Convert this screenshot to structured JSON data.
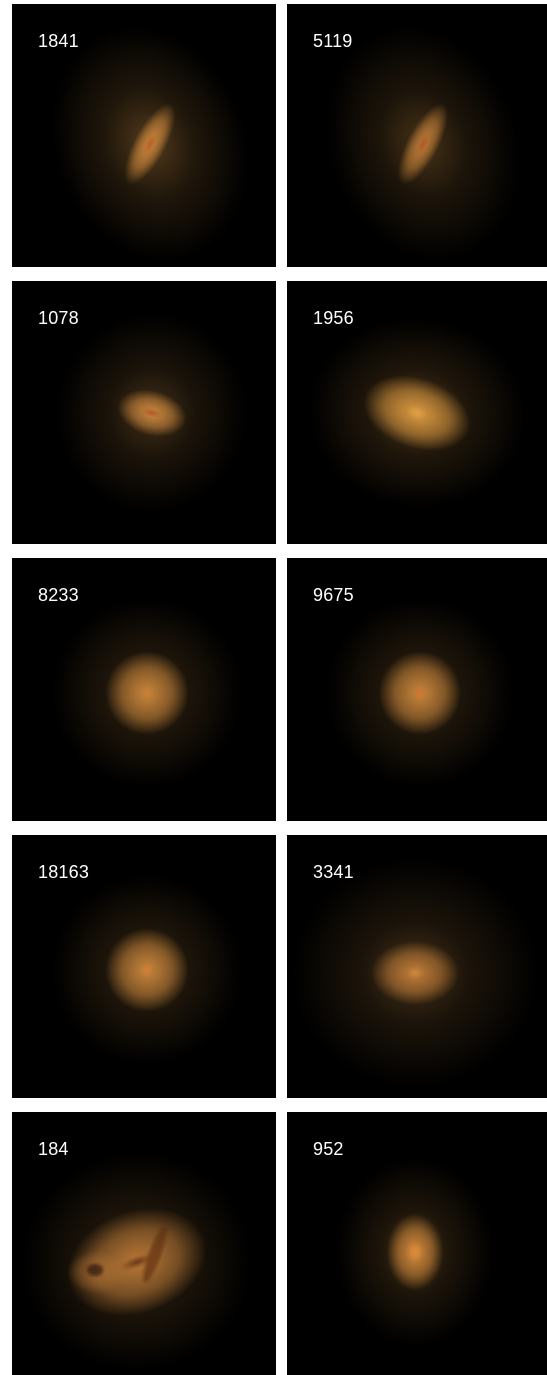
{
  "panels": [
    {
      "label": "1841",
      "shape": "elongated-disk",
      "colors": {
        "halo": "#6e4e25",
        "core": "#d08a3e",
        "nucleus": "#b0401a"
      }
    },
    {
      "label": "5119",
      "shape": "elongated-disk",
      "colors": {
        "halo": "#5f4420",
        "core": "#c3803a",
        "nucleus": "#a83c18"
      }
    },
    {
      "label": "1078",
      "shape": "compact-disturbed",
      "colors": {
        "halo": "#5a4020",
        "core": "#cf8a3f",
        "nucleus": "#9c3a18"
      }
    },
    {
      "label": "1956",
      "shape": "ellipsoidal",
      "colors": {
        "halo": "#6a4b24",
        "core": "#d9983f",
        "nucleus": "#e0a04a"
      }
    },
    {
      "label": "8233",
      "shape": "round",
      "colors": {
        "halo": "#5f4420",
        "core": "#c7843b",
        "nucleus": "#d07a30"
      }
    },
    {
      "label": "9675",
      "shape": "round",
      "colors": {
        "halo": "#5f4420",
        "core": "#c7843b",
        "nucleus": "#d86a28"
      }
    },
    {
      "label": "18163",
      "shape": "round",
      "colors": {
        "halo": "#5f4420",
        "core": "#c7843b",
        "nucleus": "#e07a30"
      }
    },
    {
      "label": "3341",
      "shape": "diffuse",
      "colors": {
        "halo": "#5a4020",
        "core": "#c07c38",
        "nucleus": "#cc8a3c"
      }
    },
    {
      "label": "184",
      "shape": "irregular-merger",
      "colors": {
        "halo": "#5f4420",
        "core": "#b67636",
        "nucleus": "#5a2a10"
      }
    },
    {
      "label": "952",
      "shape": "compact-elliptical",
      "colors": {
        "halo": "#5f4420",
        "core": "#d38a3c",
        "nucleus": "#e08a3a"
      }
    }
  ]
}
